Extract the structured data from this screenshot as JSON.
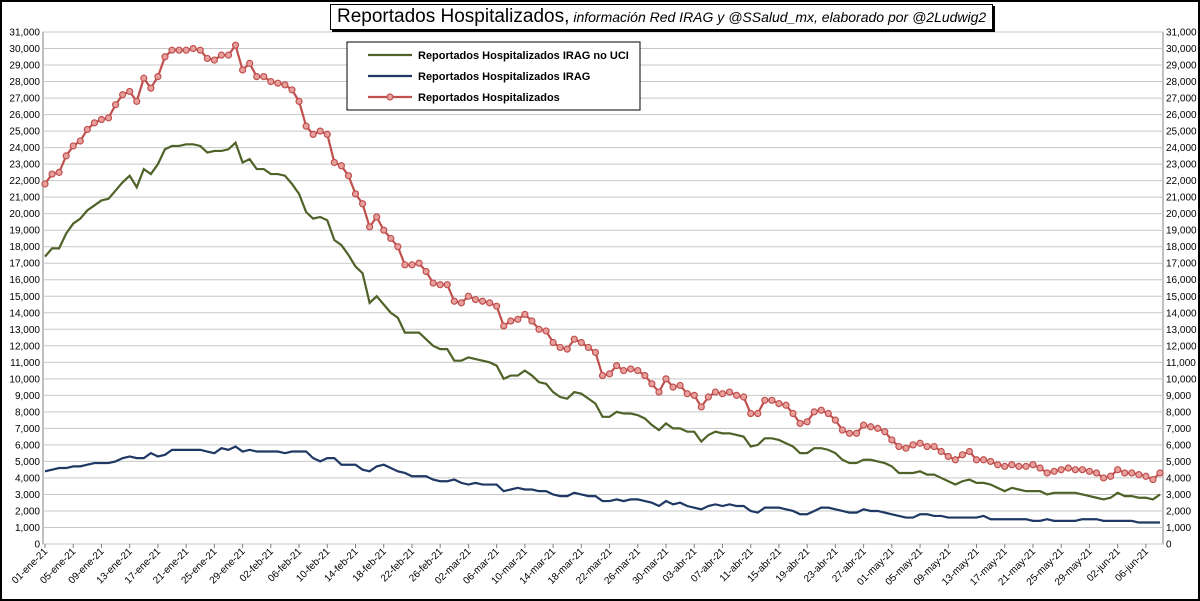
{
  "chart_data": {
    "type": "line",
    "title": "Reportados Hospitalizados,",
    "subtitle": "información Red IRAG y @SSalud_mx, elaborado por @2Ludwig2",
    "categories": [
      "01-ene-21",
      null,
      null,
      null,
      "05-ene-21",
      null,
      null,
      null,
      "09-ene-21",
      null,
      null,
      null,
      "13-ene-21",
      null,
      null,
      null,
      "17-ene-21",
      null,
      null,
      null,
      "21-ene-21",
      null,
      null,
      null,
      "25-ene-21",
      null,
      null,
      null,
      "29-ene-21",
      null,
      null,
      null,
      "02-feb-21",
      null,
      null,
      null,
      "06-feb-21",
      null,
      null,
      null,
      "10-feb-21",
      null,
      null,
      null,
      "14-feb-21",
      null,
      null,
      null,
      "18-feb-21",
      null,
      null,
      null,
      "22-feb-21",
      null,
      null,
      null,
      "26-feb-21",
      null,
      null,
      null,
      "02-mar-21",
      null,
      null,
      null,
      "06-mar-21",
      null,
      null,
      null,
      "10-mar-21",
      null,
      null,
      null,
      "14-mar-21",
      null,
      null,
      null,
      "18-mar-21",
      null,
      null,
      null,
      "22-mar-21",
      null,
      null,
      null,
      "26-mar-21",
      null,
      null,
      null,
      "30-mar-21",
      null,
      null,
      null,
      "03-abr-21",
      null,
      null,
      null,
      "07-abr-21",
      null,
      null,
      null,
      "11-abr-21",
      null,
      null,
      null,
      "15-abr-21",
      null,
      null,
      null,
      "19-abr-21",
      null,
      null,
      null,
      "23-abr-21",
      null,
      null,
      null,
      "27-abr-21",
      null,
      null,
      null,
      "01-may-21",
      null,
      null,
      null,
      "05-may-21",
      null,
      null,
      null,
      "09-may-21",
      null,
      null,
      null,
      "13-may-21",
      null,
      null,
      null,
      "17-may-21",
      null,
      null,
      null,
      "21-may-21",
      null,
      null,
      null,
      "25-may-21",
      null,
      null,
      null,
      "29-may-21",
      null,
      null,
      null,
      "02-jun-21",
      null,
      null,
      null,
      "06-jun-21",
      null,
      null
    ],
    "series": [
      {
        "name": "Reportados Hospitalizados IRAG no UCI",
        "color": "#4f6228",
        "marker": false,
        "values": [
          17400,
          17900,
          17900,
          18800,
          19400,
          19700,
          20200,
          20500,
          20800,
          20900,
          21400,
          21900,
          22300,
          21600,
          22700,
          22400,
          23000,
          23900,
          24100,
          24100,
          24200,
          24200,
          24100,
          23700,
          23800,
          23800,
          23900,
          24300,
          23100,
          23300,
          22700,
          22700,
          22400,
          22400,
          22300,
          21800,
          21200,
          20100,
          19700,
          19800,
          19600,
          18400,
          18100,
          17500,
          16800,
          16400,
          14600,
          15000,
          14500,
          14000,
          13700,
          12800,
          12800,
          12800,
          12400,
          12000,
          11800,
          11800,
          11100,
          11100,
          11300,
          11200,
          11100,
          11000,
          10800,
          10000,
          10200,
          10200,
          10500,
          10200,
          9800,
          9700,
          9200,
          8900,
          8800,
          9200,
          9100,
          8800,
          8500,
          7700,
          7700,
          8000,
          7900,
          7900,
          7800,
          7600,
          7200,
          6900,
          7300,
          7000,
          7000,
          6800,
          6800,
          6200,
          6600,
          6800,
          6700,
          6700,
          6600,
          6500,
          5900,
          6000,
          6400,
          6400,
          6300,
          6100,
          5900,
          5500,
          5500,
          5800,
          5800,
          5700,
          5500,
          5100,
          4900,
          4900,
          5100,
          5100,
          5000,
          4900,
          4700,
          4300,
          4300,
          4300,
          4400,
          4200,
          4200,
          4000,
          3800,
          3600,
          3800,
          3900,
          3700,
          3700,
          3600,
          3400,
          3200,
          3400,
          3300,
          3200,
          3200,
          3200,
          3000,
          3100,
          3100,
          3100,
          3100,
          3000,
          2900,
          2800,
          2700,
          2800,
          3100,
          2900,
          2900,
          2800,
          2800,
          2700,
          3000
        ]
      },
      {
        "name": "Reportados Hospitalizados IRAG",
        "color": "#1f3864",
        "marker": false,
        "values": [
          4400,
          4500,
          4600,
          4600,
          4700,
          4700,
          4800,
          4900,
          4900,
          4900,
          5000,
          5200,
          5300,
          5200,
          5200,
          5500,
          5300,
          5400,
          5700,
          5700,
          5700,
          5700,
          5700,
          5600,
          5500,
          5800,
          5700,
          5900,
          5600,
          5700,
          5600,
          5600,
          5600,
          5600,
          5500,
          5600,
          5600,
          5600,
          5200,
          5000,
          5200,
          5200,
          4800,
          4800,
          4800,
          4500,
          4400,
          4700,
          4800,
          4600,
          4400,
          4300,
          4100,
          4100,
          4100,
          3900,
          3800,
          3800,
          3900,
          3700,
          3600,
          3700,
          3600,
          3600,
          3600,
          3200,
          3300,
          3400,
          3300,
          3300,
          3200,
          3200,
          3000,
          2900,
          2900,
          3100,
          3000,
          2900,
          2900,
          2600,
          2600,
          2700,
          2600,
          2700,
          2700,
          2600,
          2500,
          2300,
          2600,
          2400,
          2500,
          2300,
          2200,
          2100,
          2300,
          2400,
          2300,
          2400,
          2300,
          2300,
          2000,
          1900,
          2200,
          2200,
          2200,
          2100,
          2000,
          1800,
          1800,
          2000,
          2200,
          2200,
          2100,
          2000,
          1900,
          1900,
          2100,
          2000,
          2000,
          1900,
          1800,
          1700,
          1600,
          1600,
          1800,
          1800,
          1700,
          1700,
          1600,
          1600,
          1600,
          1600,
          1600,
          1700,
          1500,
          1500,
          1500,
          1500,
          1500,
          1500,
          1400,
          1400,
          1500,
          1400,
          1400,
          1400,
          1400,
          1500,
          1500,
          1500,
          1400,
          1400,
          1400,
          1400,
          1400,
          1300,
          1300,
          1300,
          1300
        ]
      },
      {
        "name": "Reportados Hospitalizados",
        "color": "#c0504d",
        "marker": true,
        "values": [
          21800,
          22400,
          22500,
          23500,
          24100,
          24400,
          25100,
          25500,
          25700,
          25800,
          26600,
          27200,
          27400,
          26800,
          28200,
          27600,
          28300,
          29500,
          29900,
          29900,
          29900,
          30000,
          29900,
          29400,
          29300,
          29600,
          29600,
          30200,
          28700,
          29100,
          28300,
          28300,
          28000,
          27900,
          27800,
          27500,
          26800,
          25300,
          24800,
          25000,
          24800,
          23100,
          22900,
          22300,
          21200,
          20600,
          19200,
          19800,
          19000,
          18500,
          18000,
          16900,
          16900,
          17000,
          16500,
          15800,
          15700,
          15700,
          14700,
          14600,
          15000,
          14800,
          14700,
          14600,
          14400,
          13200,
          13500,
          13600,
          13900,
          13500,
          13000,
          12900,
          12200,
          11900,
          11800,
          12400,
          12200,
          11900,
          11600,
          10200,
          10300,
          10800,
          10500,
          10600,
          10500,
          10200,
          9700,
          9200,
          10000,
          9500,
          9600,
          9100,
          9000,
          8300,
          8900,
          9200,
          9100,
          9200,
          9000,
          8900,
          7900,
          7900,
          8700,
          8700,
          8500,
          8400,
          7900,
          7300,
          7400,
          8000,
          8100,
          7900,
          7500,
          6900,
          6700,
          6700,
          7200,
          7100,
          7000,
          6800,
          6300,
          5900,
          5800,
          6000,
          6100,
          5900,
          5900,
          5600,
          5300,
          5100,
          5400,
          5600,
          5100,
          5100,
          5000,
          4800,
          4700,
          4800,
          4700,
          4700,
          4800,
          4600,
          4300,
          4400,
          4500,
          4600,
          4500,
          4500,
          4400,
          4300,
          4000,
          4100,
          4500,
          4300,
          4300,
          4200,
          4100,
          3900,
          4300
        ]
      }
    ],
    "ylim": [
      0,
      31000
    ],
    "yticks": [
      0,
      {
        "value": 1000,
        "label": "1,000"
      },
      {
        "value": 2000,
        "label": "2,000"
      },
      {
        "value": 3000,
        "label": "3,000"
      },
      {
        "value": 4000,
        "label": "4,000"
      },
      {
        "value": 5000,
        "label": "5,000"
      },
      {
        "value": 6000,
        "label": "6,000"
      },
      {
        "value": 7000,
        "label": "7,000"
      },
      {
        "value": 8000,
        "label": "8,000"
      },
      {
        "value": 9000,
        "label": "9,000"
      },
      {
        "value": 10000,
        "label": "10,000"
      },
      {
        "value": 11000,
        "label": "11,000"
      },
      {
        "value": 12000,
        "label": "12,000"
      },
      {
        "value": 13000,
        "label": "13,000"
      },
      {
        "value": 14000,
        "label": "14,000"
      },
      {
        "value": 15000,
        "label": "15,000"
      },
      {
        "value": 16000,
        "label": "16,000"
      },
      {
        "value": 17000,
        "label": "17,000"
      },
      {
        "value": 18000,
        "label": "18,000"
      },
      {
        "value": 19000,
        "label": "19,000"
      },
      {
        "value": 20000,
        "label": "20,000"
      },
      {
        "value": 21000,
        "label": "21,000"
      },
      {
        "value": 22000,
        "label": "22,000"
      },
      {
        "value": 23000,
        "label": "23,000"
      },
      {
        "value": 24000,
        "label": "24,000"
      },
      {
        "value": 25000,
        "label": "25,000"
      },
      {
        "value": 26000,
        "label": "26,000"
      },
      {
        "value": 27000,
        "label": "27,000"
      },
      {
        "value": 28000,
        "label": "28,000"
      },
      {
        "value": 29000,
        "label": "29,000"
      },
      {
        "value": 30000,
        "label": "30,000"
      },
      {
        "value": 31000,
        "label": "31,000"
      }
    ],
    "grid": true,
    "right_axis_labels": true
  }
}
